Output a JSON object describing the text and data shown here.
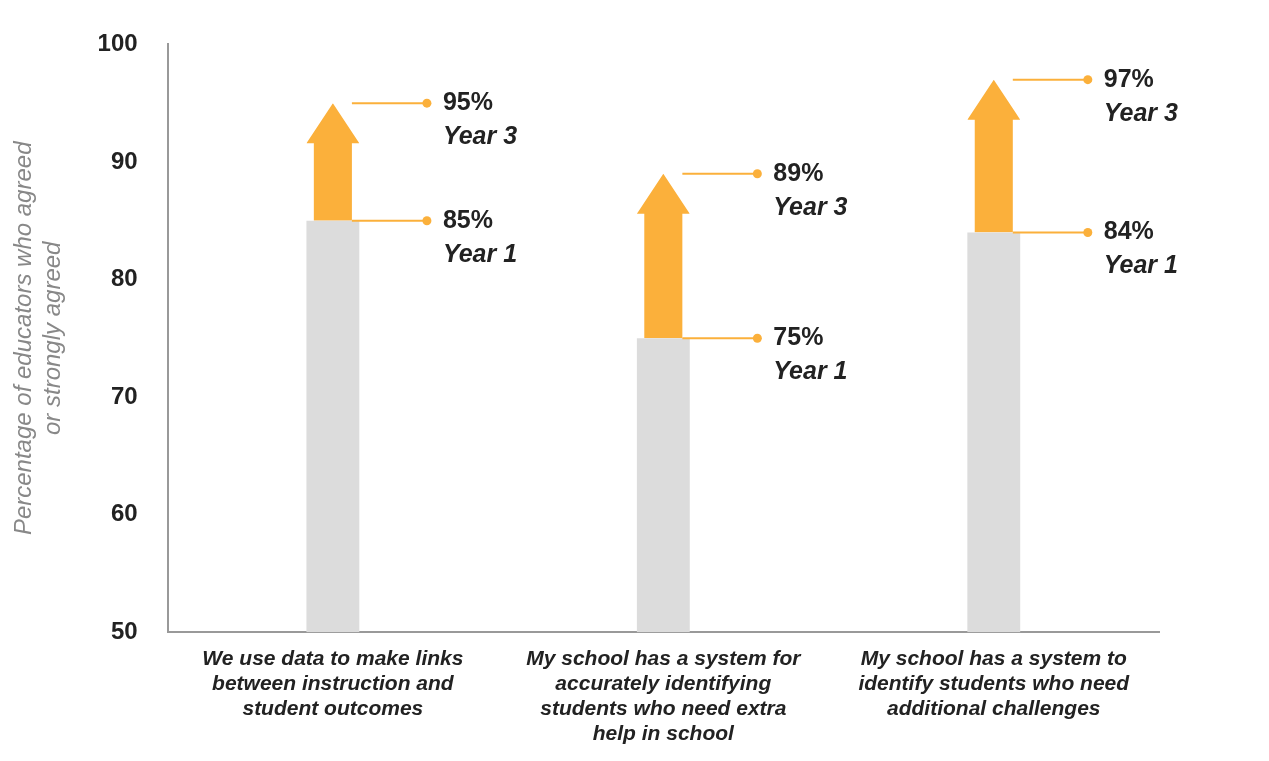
{
  "chart_data": {
    "type": "bar",
    "ylabel": "Percentage of educators who agreed\nor strongly agreed",
    "categories": [
      "We use data to make links between instruction and student outcomes",
      "My school has a system for accurately identifying students who need extra help in school",
      "My school has a system to identify students who need additional challenges"
    ],
    "series": [
      {
        "color": "#dcdcdc",
        "values": [
          35,
          25,
          34
        ],
        "base": [
          50,
          50,
          50
        ]
      },
      {
        "color": "#fbb03b",
        "values": [
          10,
          14,
          13
        ],
        "base": [
          85,
          75,
          84
        ]
      }
    ],
    "ylim": [
      50,
      100
    ],
    "yticks": [
      50,
      60,
      70,
      80,
      90,
      100
    ],
    "annotations": [
      "95%\nYear 3",
      "85%\nYear 1",
      "89%\nYear 3",
      "75%\nYear 1",
      "97%\nYear 3",
      "84%\nYear 1"
    ]
  }
}
